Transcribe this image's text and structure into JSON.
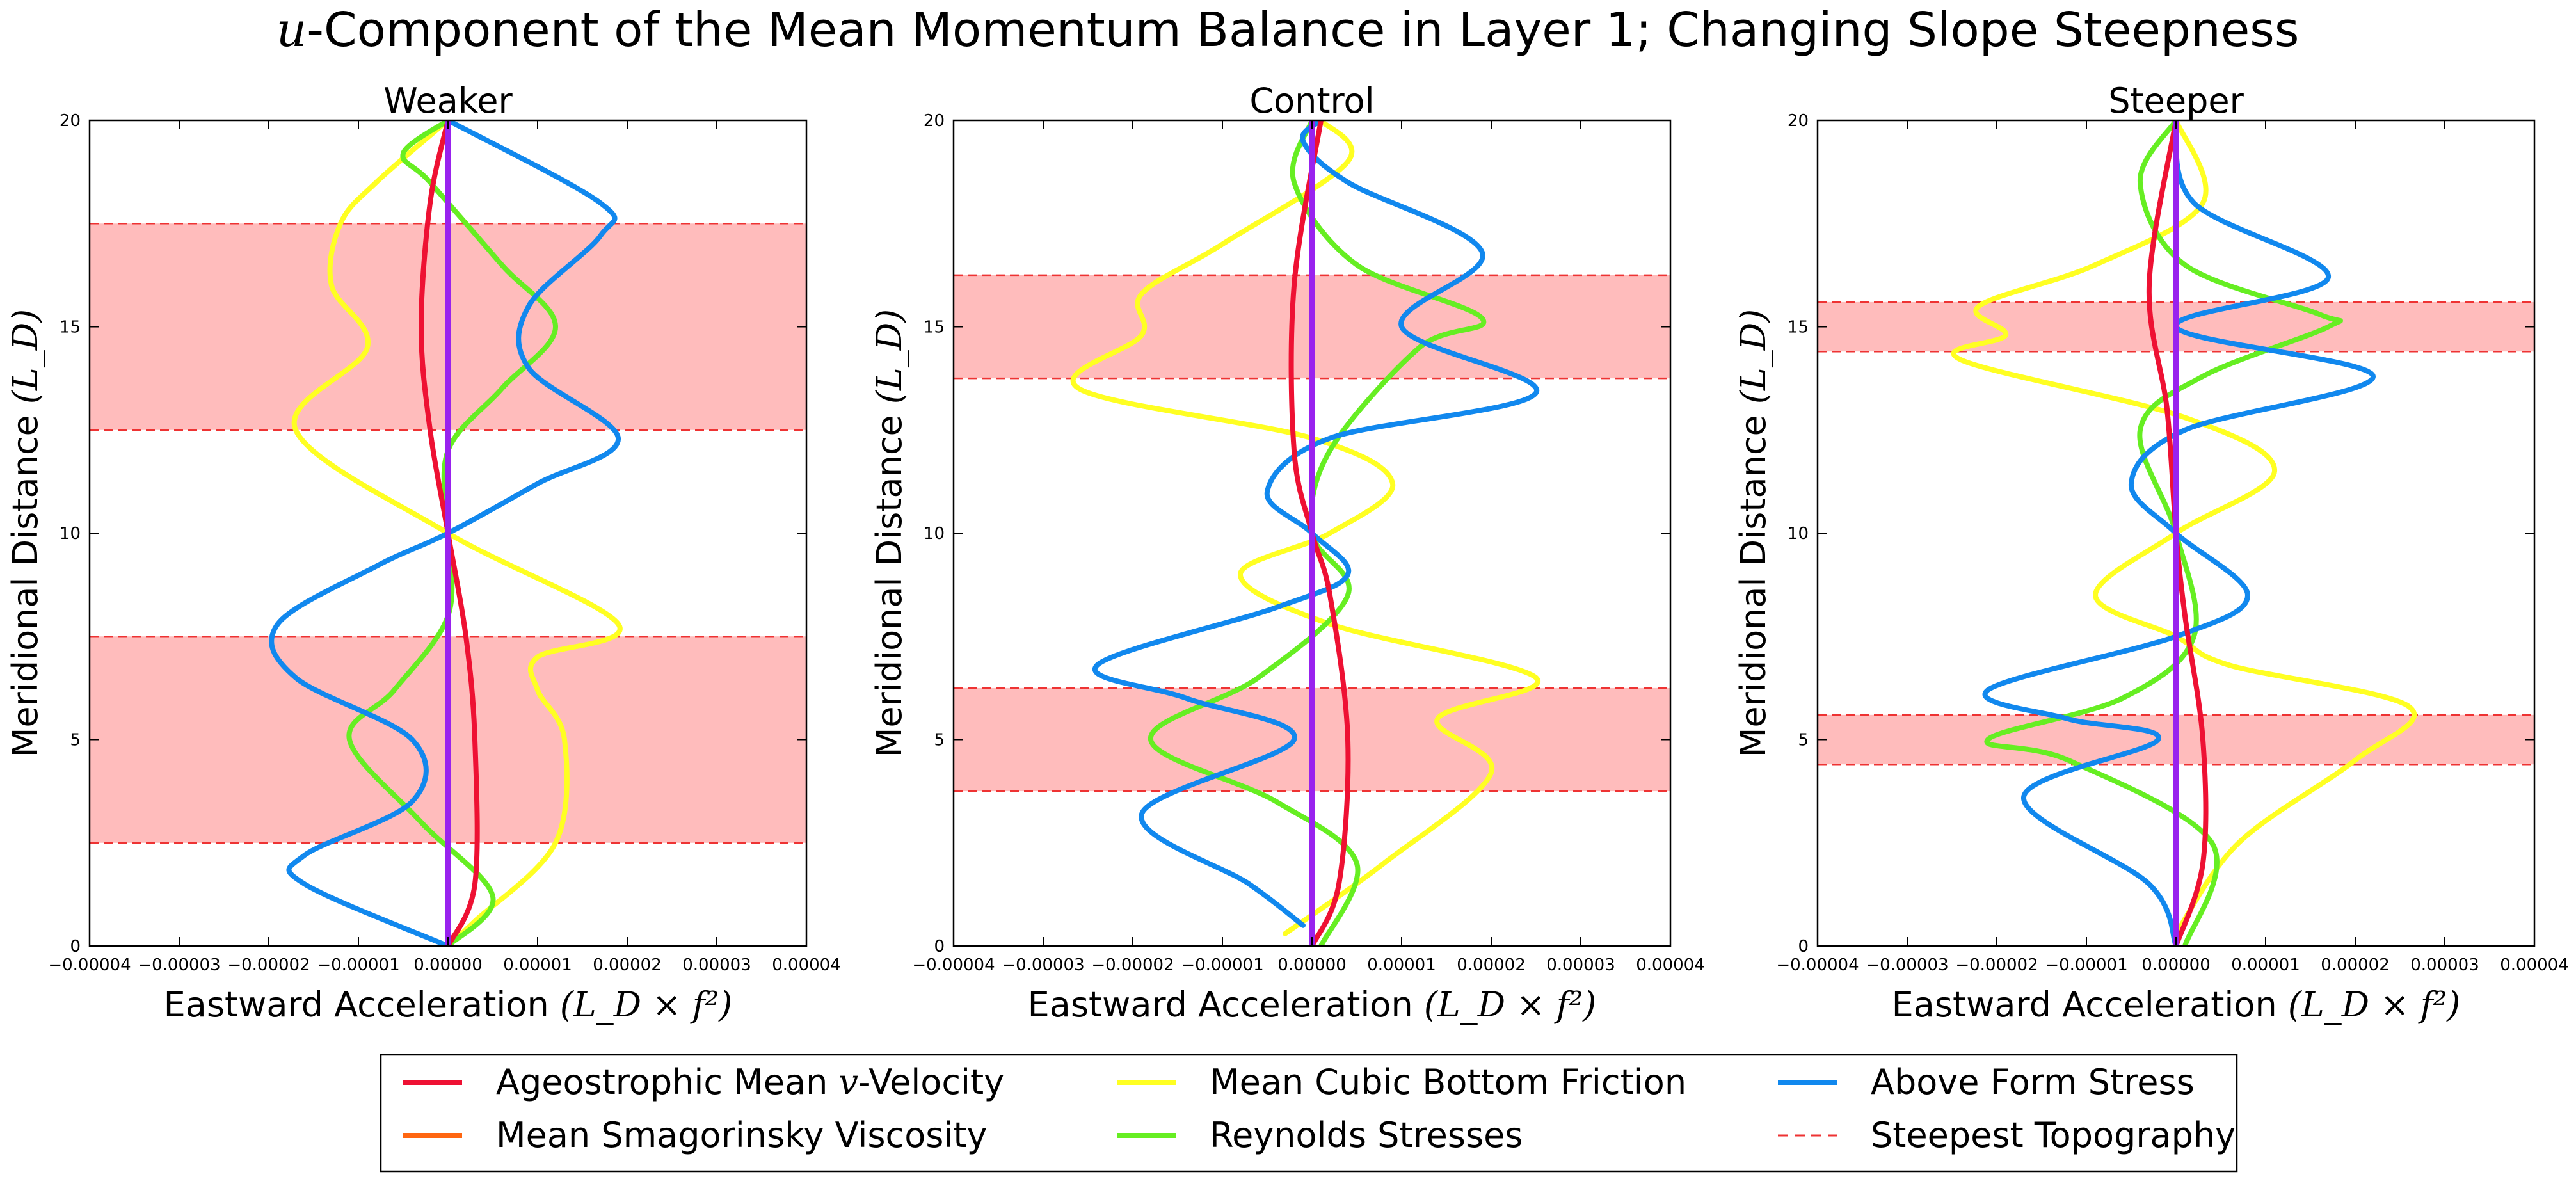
{
  "figure": {
    "title_var": "u",
    "title_rest": "-Component of the Mean Momentum Balance in Layer 1; Changing Slope Steepness"
  },
  "legend": {
    "entries": [
      {
        "key": "ageo",
        "label_pre": "Ageostrophic Mean ",
        "label_math": "v",
        "label_post": "-Velocity",
        "color": "#ee1133",
        "style": "solid"
      },
      {
        "key": "smag",
        "label_pre": "Mean Smagorinsky Viscosity",
        "label_math": "",
        "label_post": "",
        "color": "#ff6611",
        "style": "solid"
      },
      {
        "key": "fric",
        "label_pre": "Mean Cubic Bottom Friction",
        "label_math": "",
        "label_post": "",
        "color": "#ffff22",
        "style": "solid"
      },
      {
        "key": "reyn",
        "label_pre": "Reynolds Stresses",
        "label_math": "",
        "label_post": "",
        "color": "#66ee22",
        "style": "solid"
      },
      {
        "key": "form",
        "label_pre": "Above Form Stress",
        "label_math": "",
        "label_post": "",
        "color": "#1188ee",
        "style": "solid"
      },
      {
        "key": "topo",
        "label_pre": "Steepest Topography",
        "label_math": "",
        "label_post": "",
        "color": "#ee3333",
        "style": "dashed"
      }
    ]
  },
  "chart_data": [
    {
      "type": "line",
      "title": "Weaker",
      "xlabel_text": "Eastward Acceleration",
      "xlabel_math": "(L_D × f²)",
      "ylabel_text": "Meridional Distance",
      "ylabel_math": "(L_D)",
      "xlim": [
        -4e-05,
        4e-05
      ],
      "ylim": [
        0,
        20
      ],
      "xticks": [
        "−0.00004",
        "−0.00003",
        "−0.00002",
        "−0.00001",
        "0.00000",
        "0.00001",
        "0.00002",
        "0.00003",
        "0.00004"
      ],
      "yticks": [
        "0",
        "5",
        "10",
        "15",
        "20"
      ],
      "topography_bands": [
        [
          2.5,
          7.5
        ],
        [
          12.5,
          17.5
        ]
      ],
      "series": [
        {
          "key": "fric",
          "points": [
            [
              0,
              0
            ],
            [
              3e-06,
              0.6
            ],
            [
              1.2e-05,
              2.5
            ],
            [
              1.3e-05,
              5
            ],
            [
              1e-05,
              6.2
            ],
            [
              1e-05,
              7
            ],
            [
              1.9e-05,
              7.8
            ],
            [
              0,
              10
            ],
            [
              -1.7e-05,
              12.5
            ],
            [
              -9e-06,
              14.5
            ],
            [
              -1.3e-05,
              16
            ],
            [
              -1.2e-05,
              17.5
            ],
            [
              -8e-06,
              18.5
            ],
            [
              0,
              20
            ]
          ]
        },
        {
          "key": "reyn",
          "points": [
            [
              0,
              0
            ],
            [
              5e-06,
              1.2
            ],
            [
              -3e-06,
              3
            ],
            [
              -1.1e-05,
              5
            ],
            [
              -6e-06,
              6.2
            ],
            [
              0,
              8
            ],
            [
              0,
              10
            ],
            [
              0,
              12
            ],
            [
              6e-06,
              13.5
            ],
            [
              1.2e-05,
              15
            ],
            [
              6e-06,
              16.5
            ],
            [
              -2e-06,
              18.5
            ],
            [
              -5e-06,
              19.2
            ],
            [
              0,
              20
            ]
          ]
        },
        {
          "key": "form",
          "points": [
            [
              0,
              0
            ],
            [
              -1.6e-05,
              1.5
            ],
            [
              -1.6e-05,
              2.2
            ],
            [
              -4e-06,
              3.5
            ],
            [
              -4e-06,
              5
            ],
            [
              -1.7e-05,
              6.5
            ],
            [
              -1.9e-05,
              7.8
            ],
            [
              -8e-06,
              9.2
            ],
            [
              0,
              10
            ],
            [
              1e-05,
              11.2
            ],
            [
              1.9e-05,
              12.3
            ],
            [
              9e-06,
              14
            ],
            [
              9e-06,
              15.5
            ],
            [
              1.7e-05,
              17.2
            ],
            [
              1.7e-05,
              18
            ],
            [
              0,
              20
            ]
          ]
        },
        {
          "key": "ageo",
          "points": [
            [
              0,
              0
            ],
            [
              3e-06,
              1.5
            ],
            [
              3e-06,
              5
            ],
            [
              2e-06,
              7.5
            ],
            [
              0,
              10
            ],
            [
              -2e-06,
              12.5
            ],
            [
              -3e-06,
              15
            ],
            [
              -2e-06,
              18
            ],
            [
              0,
              20
            ]
          ]
        },
        {
          "key": "smag",
          "points": [
            [
              0,
              0
            ],
            [
              0,
              20
            ]
          ]
        }
      ],
      "zero_line": {
        "color": "#9922ee",
        "points": [
          [
            0,
            0
          ],
          [
            0,
            20
          ]
        ]
      }
    },
    {
      "type": "line",
      "title": "Control",
      "xlabel_text": "Eastward Acceleration",
      "xlabel_math": "(L_D × f²)",
      "ylabel_text": "Meridional Distance",
      "ylabel_math": "(L_D)",
      "xlim": [
        -4e-05,
        4e-05
      ],
      "ylim": [
        0,
        20
      ],
      "xticks": [
        "−0.00004",
        "−0.00003",
        "−0.00002",
        "−0.00001",
        "0.00000",
        "0.00001",
        "0.00002",
        "0.00003",
        "0.00004"
      ],
      "yticks": [
        "0",
        "5",
        "10",
        "15",
        "20"
      ],
      "topography_bands": [
        [
          3.75,
          6.25
        ],
        [
          13.75,
          16.25
        ]
      ],
      "series": [
        {
          "key": "fric",
          "points": [
            [
              -3e-06,
              0.3
            ],
            [
              8e-06,
              2
            ],
            [
              2e-05,
              4.2
            ],
            [
              1.4e-05,
              5.5
            ],
            [
              2.5e-05,
              6.5
            ],
            [
              2e-06,
              7.8
            ],
            [
              -8e-06,
              9
            ],
            [
              2e-06,
              10
            ],
            [
              9e-06,
              11.2
            ],
            [
              0,
              12.3
            ],
            [
              -2.6e-05,
              13.5
            ],
            [
              -1.9e-05,
              14.8
            ],
            [
              -1.9e-05,
              15.8
            ],
            [
              -1e-05,
              17
            ],
            [
              4e-06,
              19
            ],
            [
              1e-06,
              20
            ]
          ]
        },
        {
          "key": "reyn",
          "points": [
            [
              1e-06,
              0
            ],
            [
              5e-06,
              2
            ],
            [
              -4e-06,
              3.5
            ],
            [
              -1.8e-05,
              5
            ],
            [
              -6e-06,
              6.5
            ],
            [
              4e-06,
              8.5
            ],
            [
              0,
              10
            ],
            [
              2e-06,
              12
            ],
            [
              1.2e-05,
              14.5
            ],
            [
              1.9e-05,
              15.2
            ],
            [
              5e-06,
              16.5
            ],
            [
              -2e-06,
              18.5
            ],
            [
              0,
              20
            ]
          ]
        },
        {
          "key": "form",
          "points": [
            [
              -1e-06,
              0.5
            ],
            [
              -7e-06,
              1.5
            ],
            [
              -1.9e-05,
              3.2
            ],
            [
              -2e-06,
              5
            ],
            [
              -1.4e-05,
              6
            ],
            [
              -2.4e-05,
              6.8
            ],
            [
              -4e-06,
              8.2
            ],
            [
              4e-06,
              9
            ],
            [
              0,
              10
            ],
            [
              -5e-06,
              11
            ],
            [
              2e-06,
              12.3
            ],
            [
              2.5e-05,
              13.4
            ],
            [
              1e-05,
              15
            ],
            [
              1.9e-05,
              16.8
            ],
            [
              4e-06,
              18.5
            ],
            [
              -1e-06,
              19.5
            ],
            [
              1e-06,
              20
            ]
          ]
        },
        {
          "key": "ageo",
          "points": [
            [
              0,
              0
            ],
            [
              3e-06,
              1.5
            ],
            [
              4e-06,
              5
            ],
            [
              2e-06,
              8.5
            ],
            [
              0,
              10
            ],
            [
              -2e-06,
              12
            ],
            [
              -2e-06,
              16
            ],
            [
              1e-06,
              20
            ]
          ]
        },
        {
          "key": "smag",
          "points": [
            [
              0,
              0
            ],
            [
              0,
              20
            ]
          ]
        }
      ],
      "zero_line": {
        "color": "#9922ee",
        "points": [
          [
            0,
            0
          ],
          [
            0,
            20
          ]
        ]
      }
    },
    {
      "type": "line",
      "title": "Steeper",
      "xlabel_text": "Eastward Acceleration",
      "xlabel_math": "(L_D × f²)",
      "ylabel_text": "Meridional Distance",
      "ylabel_math": "(L_D)",
      "xlim": [
        -4e-05,
        4e-05
      ],
      "ylim": [
        0,
        20
      ],
      "xticks": [
        "−0.00004",
        "−0.00003",
        "−0.00002",
        "−0.00001",
        "0.00000",
        "0.00001",
        "0.00002",
        "0.00003",
        "0.00004"
      ],
      "yticks": [
        "0",
        "5",
        "10",
        "15",
        "20"
      ],
      "topography_bands": [
        [
          4.4,
          5.6
        ],
        [
          14.4,
          15.6
        ]
      ],
      "series": [
        {
          "key": "fric",
          "points": [
            [
              0,
              0.3
            ],
            [
              7e-06,
              2.5
            ],
            [
              2e-05,
              4.5
            ],
            [
              2.6e-05,
              5.8
            ],
            [
              6e-06,
              6.8
            ],
            [
              0,
              7.5
            ],
            [
              -9e-06,
              8.5
            ],
            [
              0,
              10
            ],
            [
              1.1e-05,
              11.5
            ],
            [
              1e-06,
              12.8
            ],
            [
              -2.4e-05,
              14.2
            ],
            [
              -1.9e-05,
              14.8
            ],
            [
              -2.2e-05,
              15.5
            ],
            [
              -9e-06,
              16.5
            ],
            [
              3e-06,
              18
            ],
            [
              0,
              20
            ]
          ]
        },
        {
          "key": "reyn",
          "points": [
            [
              1e-06,
              0
            ],
            [
              4e-06,
              2.5
            ],
            [
              -1.2e-05,
              4.5
            ],
            [
              -2.1e-05,
              5
            ],
            [
              -6e-06,
              6
            ],
            [
              2e-06,
              7.5
            ],
            [
              0,
              10
            ],
            [
              -4e-06,
              12.5
            ],
            [
              3e-06,
              13.8
            ],
            [
              1.7e-05,
              15
            ],
            [
              1.6e-05,
              15.3
            ],
            [
              1e-06,
              16.5
            ],
            [
              -4e-06,
              18.5
            ],
            [
              0,
              20
            ]
          ]
        },
        {
          "key": "form",
          "points": [
            [
              0,
              0
            ],
            [
              -3e-06,
              1.5
            ],
            [
              -1.7e-05,
              3.6
            ],
            [
              -2e-06,
              5
            ],
            [
              -1.2e-05,
              5.5
            ],
            [
              -2.1e-05,
              6.2
            ],
            [
              0,
              7.5
            ],
            [
              8e-06,
              8.5
            ],
            [
              0,
              10
            ],
            [
              -5e-06,
              11.2
            ],
            [
              1e-06,
              12.5
            ],
            [
              2.2e-05,
              13.8
            ],
            [
              0,
              15
            ],
            [
              1.7e-05,
              16.2
            ],
            [
              2e-06,
              18
            ],
            [
              0,
              20
            ]
          ]
        },
        {
          "key": "ageo",
          "points": [
            [
              0,
              0
            ],
            [
              3e-06,
              2
            ],
            [
              3e-06,
              5
            ],
            [
              1e-06,
              8
            ],
            [
              0,
              10
            ],
            [
              -1e-06,
              13
            ],
            [
              -3e-06,
              16
            ],
            [
              0,
              20
            ]
          ]
        },
        {
          "key": "smag",
          "points": [
            [
              0,
              0
            ],
            [
              0,
              20
            ]
          ]
        }
      ],
      "zero_line": {
        "color": "#9922ee",
        "points": [
          [
            0,
            0
          ],
          [
            0,
            20
          ]
        ]
      }
    }
  ]
}
